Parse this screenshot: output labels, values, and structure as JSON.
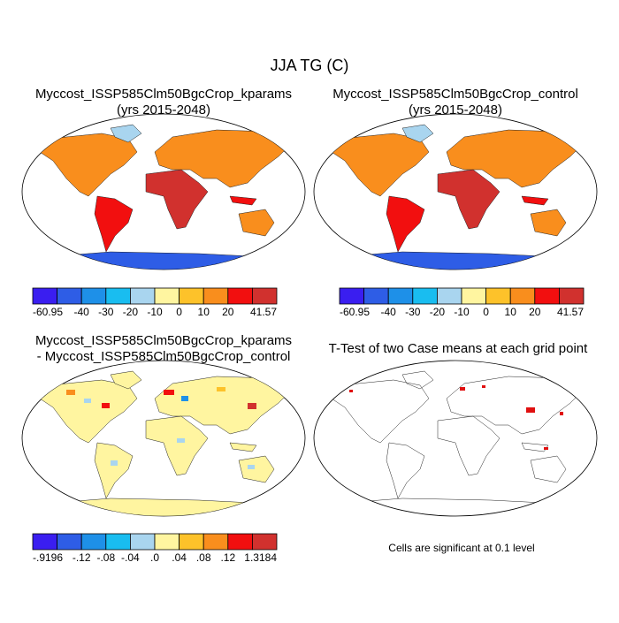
{
  "title": "JJA TG (C)",
  "panels": [
    {
      "title": [
        "Myccost_ISSP585Clm50BgcCrop_kparams",
        "(yrs 2015-2048)"
      ],
      "colorbar": {
        "colors": [
          "#3a1ef0",
          "#2e5de6",
          "#1e90e8",
          "#19bdf0",
          "#a9d5ef",
          "#fff5a0",
          "#fdc22a",
          "#f98e1d",
          "#f20f0f",
          "#d1312e"
        ],
        "labels": [
          "-60.95",
          null,
          "-40",
          "-30",
          "-20",
          "-10",
          "0",
          "10",
          "20",
          null,
          "41.57"
        ]
      }
    },
    {
      "title": [
        "Myccost_ISSP585Clm50BgcCrop_control",
        "(yrs 2015-2048)"
      ],
      "colorbar": {
        "colors": [
          "#3a1ef0",
          "#2e5de6",
          "#1e90e8",
          "#19bdf0",
          "#a9d5ef",
          "#fff5a0",
          "#fdc22a",
          "#f98e1d",
          "#f20f0f",
          "#d1312e"
        ],
        "labels": [
          "-60.95",
          null,
          "-40",
          "-30",
          "-20",
          "-10",
          "0",
          "10",
          "20",
          null,
          "41.57"
        ]
      }
    },
    {
      "title": [
        "Myccost_ISSP585Clm50BgcCrop_kparams",
        "- Myccost_ISSP585Clm50BgcCrop_control"
      ],
      "colorbar": {
        "colors": [
          "#3a1ef0",
          "#2e5de6",
          "#1e90e8",
          "#19bdf0",
          "#a9d5ef",
          "#fff5a0",
          "#fdc22a",
          "#f98e1d",
          "#f20f0f",
          "#d1312e"
        ],
        "labels": [
          "-.9196",
          null,
          "-.12",
          "-.08",
          "-.04",
          ".0",
          ".04",
          ".08",
          ".12",
          null,
          "1.3184"
        ]
      }
    },
    {
      "title": [
        "T-Test of two Case means at each grid point"
      ]
    }
  ],
  "note": "Cells are significant at 0.1 level"
}
